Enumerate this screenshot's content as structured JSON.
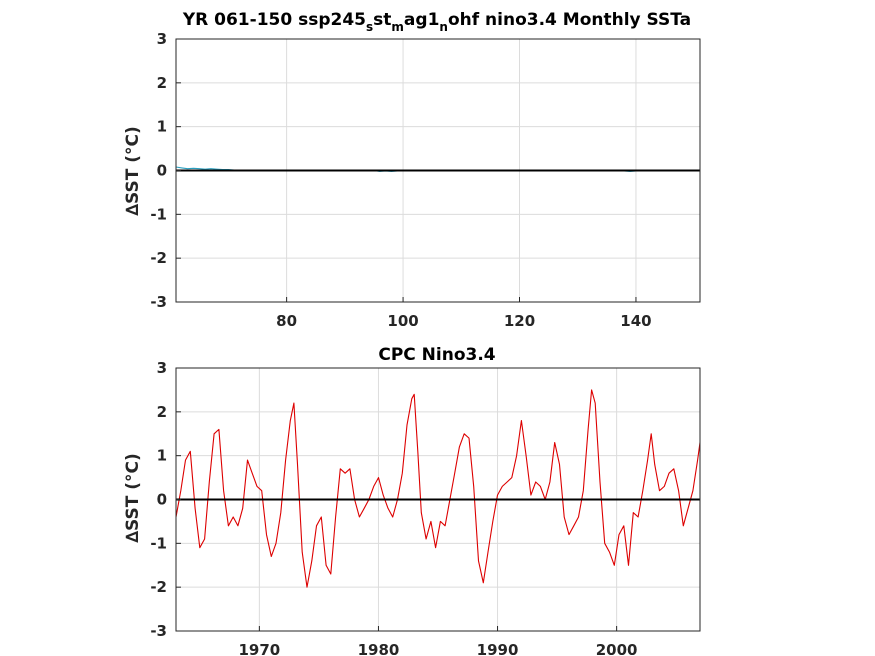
{
  "chart_data": [
    {
      "type": "line",
      "title_parts": {
        "t1": "YR 061-150 ssp245",
        "s1": "s",
        "t2": "st",
        "s2": "m",
        "t3": "ag1",
        "s3": "n",
        "t4": "ohf nino3.4 Monthly SSTa"
      },
      "ylabel": "∆SST (°C)",
      "xlim": [
        61,
        151
      ],
      "ylim": [
        -3,
        3
      ],
      "xticks": [
        80,
        100,
        120,
        140
      ],
      "yticks": [
        -3,
        -2,
        -1,
        0,
        1,
        2,
        3
      ],
      "grid": true,
      "series_color": "#2a9fbf",
      "zero_line_color": "#000000",
      "series": [
        {
          "x": [
            61,
            62,
            63,
            64,
            65,
            66,
            67,
            68,
            69,
            70,
            71,
            75,
            80,
            85,
            90,
            95,
            96,
            97,
            98,
            100,
            105,
            110,
            115,
            120,
            125,
            130,
            135,
            138,
            139,
            140,
            145,
            150
          ],
          "values": [
            0.08,
            0.06,
            0.04,
            0.05,
            0.04,
            0.03,
            0.04,
            0.03,
            0.02,
            0.02,
            0.01,
            0.0,
            0.0,
            0.0,
            0.0,
            0.0,
            -0.02,
            -0.01,
            -0.02,
            0.0,
            0.0,
            0.0,
            0.0,
            0.0,
            0.0,
            0.0,
            0.0,
            -0.01,
            -0.02,
            -0.01,
            0.0,
            0.0
          ]
        }
      ]
    },
    {
      "type": "line",
      "title": "CPC Nino3.4",
      "ylabel": "∆SST (°C)",
      "xlim": [
        1963,
        2007
      ],
      "ylim": [
        -3,
        3
      ],
      "xticks": [
        1970,
        1980,
        1990,
        2000
      ],
      "yticks": [
        -3,
        -2,
        -1,
        0,
        1,
        2,
        3
      ],
      "grid": true,
      "series_color": "#dd0000",
      "zero_line_color": "#000000",
      "series": [
        {
          "x": [
            1963.0,
            1963.4,
            1963.8,
            1964.2,
            1964.6,
            1965.0,
            1965.4,
            1965.8,
            1966.2,
            1966.6,
            1967.0,
            1967.4,
            1967.8,
            1968.2,
            1968.6,
            1969.0,
            1969.4,
            1969.8,
            1970.2,
            1970.6,
            1971.0,
            1971.4,
            1971.8,
            1972.2,
            1972.6,
            1972.9,
            1973.2,
            1973.6,
            1974.0,
            1974.4,
            1974.8,
            1975.2,
            1975.6,
            1976.0,
            1976.4,
            1976.8,
            1977.2,
            1977.6,
            1978.0,
            1978.4,
            1978.8,
            1979.2,
            1979.6,
            1980.0,
            1980.4,
            1980.8,
            1981.2,
            1981.6,
            1982.0,
            1982.4,
            1982.8,
            1983.0,
            1983.3,
            1983.6,
            1984.0,
            1984.4,
            1984.8,
            1985.2,
            1985.6,
            1986.0,
            1986.4,
            1986.8,
            1987.2,
            1987.6,
            1988.0,
            1988.4,
            1988.8,
            1989.2,
            1989.6,
            1990.0,
            1990.4,
            1990.8,
            1991.2,
            1991.6,
            1992.0,
            1992.4,
            1992.8,
            1993.2,
            1993.6,
            1994.0,
            1994.4,
            1994.8,
            1995.2,
            1995.6,
            1996.0,
            1996.4,
            1996.8,
            1997.2,
            1997.6,
            1997.9,
            1998.2,
            1998.6,
            1999.0,
            1999.4,
            1999.8,
            2000.2,
            2000.6,
            2001.0,
            2001.4,
            2001.8,
            2002.2,
            2002.6,
            2002.9,
            2003.2,
            2003.6,
            2004.0,
            2004.4,
            2004.8,
            2005.2,
            2005.6,
            2006.0,
            2006.4,
            2006.8,
            2007.0
          ],
          "values": [
            -0.4,
            0.2,
            0.9,
            1.1,
            -0.2,
            -1.1,
            -0.9,
            0.4,
            1.5,
            1.6,
            0.2,
            -0.6,
            -0.4,
            -0.6,
            -0.2,
            0.9,
            0.6,
            0.3,
            0.2,
            -0.8,
            -1.3,
            -1.0,
            -0.3,
            0.9,
            1.8,
            2.2,
            0.8,
            -1.2,
            -2.0,
            -1.4,
            -0.6,
            -0.4,
            -1.5,
            -1.7,
            -0.4,
            0.7,
            0.6,
            0.7,
            0.0,
            -0.4,
            -0.2,
            0.0,
            0.3,
            0.5,
            0.1,
            -0.2,
            -0.4,
            0.0,
            0.6,
            1.7,
            2.3,
            2.4,
            1.1,
            -0.3,
            -0.9,
            -0.5,
            -1.1,
            -0.5,
            -0.6,
            0.0,
            0.6,
            1.2,
            1.5,
            1.4,
            0.3,
            -1.4,
            -1.9,
            -1.2,
            -0.5,
            0.1,
            0.3,
            0.4,
            0.5,
            1.0,
            1.8,
            1.0,
            0.1,
            0.4,
            0.3,
            0.0,
            0.4,
            1.3,
            0.8,
            -0.4,
            -0.8,
            -0.6,
            -0.4,
            0.2,
            1.6,
            2.5,
            2.2,
            0.4,
            -1.0,
            -1.2,
            -1.5,
            -0.8,
            -0.6,
            -1.5,
            -0.3,
            -0.4,
            0.2,
            0.9,
            1.5,
            0.8,
            0.2,
            0.3,
            0.6,
            0.7,
            0.2,
            -0.6,
            -0.2,
            0.2,
            0.9,
            1.3
          ]
        }
      ]
    }
  ]
}
